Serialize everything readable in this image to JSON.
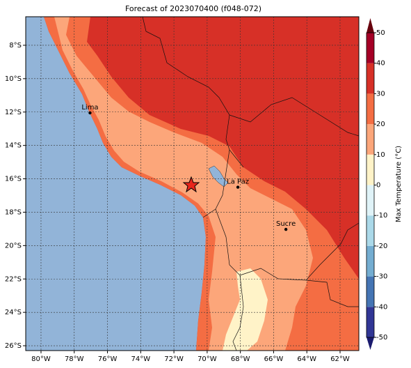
{
  "map": {
    "title": "Forecast of 2023070400 (f048-072)",
    "xlim": [
      -80.92,
      -60.87
    ],
    "ylim": [
      -26.29,
      -6.29
    ],
    "xticks": [
      {
        "value": -80,
        "label": "80°W"
      },
      {
        "value": -78,
        "label": "78°W"
      },
      {
        "value": -76,
        "label": "76°W"
      },
      {
        "value": -74,
        "label": "74°W"
      },
      {
        "value": -72,
        "label": "72°W"
      },
      {
        "value": -70,
        "label": "70°W"
      },
      {
        "value": -68,
        "label": "68°W"
      },
      {
        "value": -66,
        "label": "66°W"
      },
      {
        "value": -64,
        "label": "64°W"
      },
      {
        "value": -62,
        "label": "62°W"
      }
    ],
    "yticks": [
      {
        "value": -8,
        "label": "8°S"
      },
      {
        "value": -10,
        "label": "10°S"
      },
      {
        "value": -12,
        "label": "12°S"
      },
      {
        "value": -14,
        "label": "14°S"
      },
      {
        "value": -16,
        "label": "16°S"
      },
      {
        "value": -18,
        "label": "18°S"
      },
      {
        "value": -20,
        "label": "20°S"
      },
      {
        "value": -22,
        "label": "22°S"
      },
      {
        "value": -24,
        "label": "24°S"
      },
      {
        "value": -26,
        "label": "26°S"
      }
    ],
    "grid": true,
    "ocean_color": "#92b4d8",
    "cities": [
      {
        "name": "Lima",
        "lon": -77.05,
        "lat": -12.05
      },
      {
        "name": "La Paz",
        "lon": -68.15,
        "lat": -16.5
      },
      {
        "name": "Sucre",
        "lon": -65.26,
        "lat": -19.03
      }
    ],
    "colorbar": {
      "label": "Max Temperature (°C)",
      "lim": [
        -50,
        50
      ],
      "ticks": [
        -50,
        -40,
        -30,
        -20,
        -10,
        0,
        10,
        20,
        30,
        40,
        50
      ],
      "levels": [
        {
          "from": -50,
          "to": -40,
          "color": "#313695"
        },
        {
          "from": -40,
          "to": -30,
          "color": "#4575b4"
        },
        {
          "from": -30,
          "to": -20,
          "color": "#74add1"
        },
        {
          "from": -20,
          "to": -10,
          "color": "#abd9e9"
        },
        {
          "from": -10,
          "to": 0,
          "color": "#e0f3f8"
        },
        {
          "from": 0,
          "to": 10,
          "color": "#fff3c8"
        },
        {
          "from": 10,
          "to": 20,
          "color": "#fca67a"
        },
        {
          "from": 20,
          "to": 30,
          "color": "#f46d43"
        },
        {
          "from": 30,
          "to": 40,
          "color": "#d73027"
        },
        {
          "from": 40,
          "to": 50,
          "color": "#a50026"
        }
      ]
    }
  }
}
